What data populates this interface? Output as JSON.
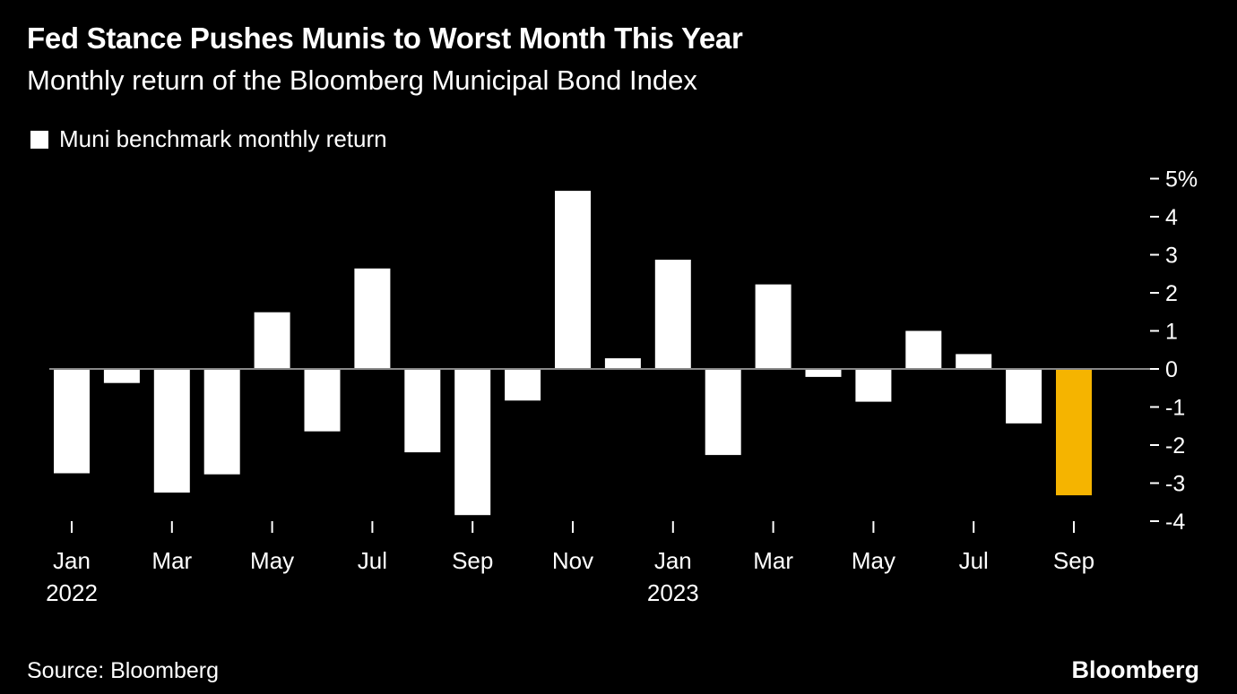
{
  "header": {
    "title": "Fed Stance Pushes Munis to Worst Month This Year",
    "subtitle": "Monthly return of the Bloomberg Municipal Bond Index"
  },
  "footer": {
    "source": "Source: Bloomberg",
    "brand": "Bloomberg"
  },
  "colors": {
    "background": "#000000",
    "bar": "#ffffff",
    "highlight": "#f5b400",
    "axis": "#888888"
  },
  "chart_data": {
    "type": "bar",
    "title": "Fed Stance Pushes Munis to Worst Month This Year",
    "subtitle": "Monthly return of the Bloomberg Municipal Bond Index",
    "xlabel": "",
    "ylabel": "",
    "ylim": [
      -4,
      5
    ],
    "y_ticks": [
      5,
      4,
      3,
      2,
      1,
      0,
      -1,
      -2,
      -3,
      -4
    ],
    "y_tick_labels": [
      "5%",
      "4",
      "3",
      "2",
      "1",
      "0",
      "-1",
      "-2",
      "-3",
      "-4"
    ],
    "y_axis_side": "right",
    "grid": false,
    "legend": {
      "position": "top-left",
      "entries": [
        "Muni benchmark monthly return"
      ]
    },
    "categories": [
      "2022-01",
      "2022-02",
      "2022-03",
      "2022-04",
      "2022-05",
      "2022-06",
      "2022-07",
      "2022-08",
      "2022-09",
      "2022-10",
      "2022-11",
      "2022-12",
      "2023-01",
      "2023-02",
      "2023-03",
      "2023-04",
      "2023-05",
      "2023-06",
      "2023-07",
      "2023-08",
      "2023-09"
    ],
    "series": [
      {
        "name": "Muni benchmark monthly return",
        "values": [
          -2.74,
          -0.37,
          -3.25,
          -2.77,
          1.49,
          -1.64,
          2.64,
          -2.19,
          -3.84,
          -0.83,
          4.68,
          0.28,
          2.87,
          -2.26,
          2.22,
          -0.21,
          -0.86,
          1.0,
          0.39,
          -1.43,
          -3.32
        ],
        "highlight_index": 20
      }
    ],
    "x_tick_labels": [
      {
        "index": 0,
        "month": "Jan",
        "year": "2022"
      },
      {
        "index": 2,
        "month": "Mar",
        "year": ""
      },
      {
        "index": 4,
        "month": "May",
        "year": ""
      },
      {
        "index": 6,
        "month": "Jul",
        "year": ""
      },
      {
        "index": 8,
        "month": "Sep",
        "year": ""
      },
      {
        "index": 10,
        "month": "Nov",
        "year": ""
      },
      {
        "index": 12,
        "month": "Jan",
        "year": "2023"
      },
      {
        "index": 14,
        "month": "Mar",
        "year": ""
      },
      {
        "index": 16,
        "month": "May",
        "year": ""
      },
      {
        "index": 18,
        "month": "Jul",
        "year": ""
      },
      {
        "index": 20,
        "month": "Sep",
        "year": ""
      }
    ]
  }
}
